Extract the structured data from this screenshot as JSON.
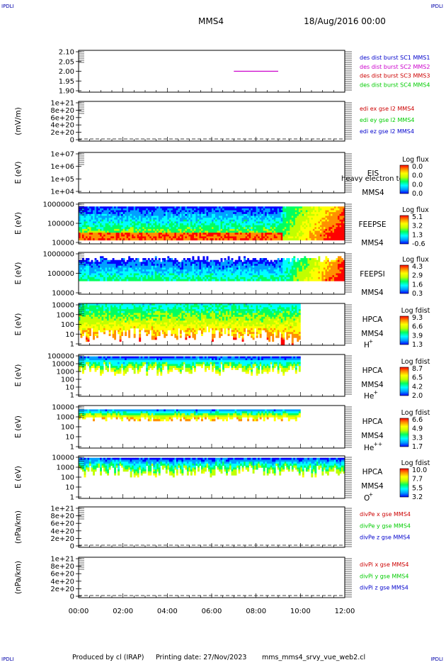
{
  "corner_mark": "IPDLI",
  "header": {
    "spacecraft": "MMS4",
    "date": "18/Aug/2016 00:00"
  },
  "footer": {
    "produced_by": "Produced by cl (IRAP)",
    "printing_date": "Printing date: 27/Nov/2023",
    "script_name": "mms_mms4_srvy_vue_web2.cl"
  },
  "colors": {
    "blue": "#0000cc",
    "magenta": "#cc00cc",
    "red": "#cc0000",
    "green": "#00cc00",
    "spectrogram_scale": [
      "#0000ff",
      "#00a0ff",
      "#00ffff",
      "#00ff60",
      "#c0ff00",
      "#ffff00",
      "#ff9000",
      "#ff0000"
    ]
  },
  "chart_data": {
    "type": "line",
    "x_ticks": [
      "00:00",
      "02:00",
      "04:00",
      "06:00",
      "08:00",
      "10:00",
      "12:00"
    ],
    "xlim": [
      0,
      12
    ],
    "panels": [
      {
        "ylabel": "",
        "yticks": [
          "2.10",
          "2.05",
          "2.00",
          "1.95",
          "1.90"
        ],
        "ylim": [
          1.9,
          2.1
        ],
        "legend": [
          {
            "label": "des dist burst SC1 MMS1",
            "color": "#0000cc"
          },
          {
            "label": "des dist burst SC2 MMS2",
            "color": "#cc00cc"
          },
          {
            "label": "des dist burst SC3 MMS3",
            "color": "#cc0000"
          },
          {
            "label": "des dist burst SC4 MMS4",
            "color": "#00cc00"
          }
        ],
        "series": [
          {
            "color": "#cc00cc",
            "x": [
              7.0,
              9.0
            ],
            "y": [
              2.0,
              2.0
            ]
          }
        ]
      },
      {
        "ylabel": "(mV/m)",
        "yticks": [
          "1e+21",
          "8e+20",
          "6e+20",
          "4e+20",
          "2e+20",
          "0"
        ],
        "legend": [
          {
            "label": "edi ex gse l2 MMS4",
            "color": "#cc0000"
          },
          {
            "label": "edi ey gse l2 MMS4",
            "color": "#00cc00"
          },
          {
            "label": "edi ez gse l2 MMS4",
            "color": "#0000cc"
          }
        ],
        "zero_line": true
      },
      {
        "ylabel": "E (eV)",
        "yticks": [
          "1e+07",
          "1e+06",
          "1e+05",
          "1e+04"
        ],
        "labels": [
          "EIS",
          "MMS4"
        ],
        "overlay": "heavy electron to",
        "colorbar": {
          "title": "Log flux",
          "ticks": [
            "0.0",
            "0.0",
            "0.0",
            "0.0"
          ]
        }
      },
      {
        "ylabel": "E (eV)",
        "yticks": [
          "1000000",
          "100000",
          "10000"
        ],
        "labels": [
          "FEEPSE",
          "MMS4"
        ],
        "colorbar": {
          "title": "Log flux",
          "ticks": [
            "5.1",
            "3.2",
            "1.3",
            "-0.6"
          ]
        }
      },
      {
        "ylabel": "E (eV)",
        "yticks": [
          "1000000",
          "100000",
          "10000"
        ],
        "labels": [
          "FEEPSI",
          "MMS4"
        ],
        "colorbar": {
          "title": "Log flux",
          "ticks": [
            "4.3",
            "2.9",
            "1.6",
            "0.3"
          ]
        }
      },
      {
        "ylabel": "E (eV)",
        "yticks": [
          "10000",
          "1000",
          "100",
          "10",
          "1"
        ],
        "labels": [
          "HPCA",
          "MMS4"
        ],
        "species": "H",
        "species_sup": "+",
        "colorbar": {
          "title": "Log fdist",
          "ticks": [
            "9.3",
            "6.6",
            "3.9",
            "1.3"
          ]
        }
      },
      {
        "ylabel": "E (eV)",
        "yticks": [
          "100000",
          "10000",
          "1000",
          "100",
          "10",
          "1"
        ],
        "labels": [
          "HPCA",
          "MMS4"
        ],
        "species": "He",
        "species_sup": "+",
        "colorbar": {
          "title": "Log fdist",
          "ticks": [
            "8.7",
            "6.5",
            "4.2",
            "2.0"
          ]
        }
      },
      {
        "ylabel": "E (eV)",
        "yticks": [
          "10000",
          "1000",
          "100",
          "10",
          "1"
        ],
        "labels": [
          "HPCA",
          "MMS4"
        ],
        "species": "He",
        "species_sup": "++",
        "colorbar": {
          "title": "Log fdist",
          "ticks": [
            "6.6",
            "4.9",
            "3.3",
            "1.7"
          ]
        }
      },
      {
        "ylabel": "E (eV)",
        "yticks": [
          "10000",
          "1000",
          "100",
          "10",
          "1"
        ],
        "labels": [
          "HPCA",
          "MMS4"
        ],
        "species": "O",
        "species_sup": "+",
        "colorbar": {
          "title": "Log fdist",
          "ticks": [
            "10.0",
            "7.7",
            "5.5",
            "3.2"
          ]
        }
      },
      {
        "ylabel": "(nPa/km)",
        "yticks": [
          "1e+21",
          "8e+20",
          "6e+20",
          "4e+20",
          "2e+20",
          "0"
        ],
        "legend": [
          {
            "label": "divPe x gse MMS4",
            "color": "#cc0000"
          },
          {
            "label": "divPe y gse MMS4",
            "color": "#00cc00"
          },
          {
            "label": "divPe z gse MMS4",
            "color": "#0000cc"
          }
        ],
        "zero_line": true
      },
      {
        "ylabel": "(nPa/km)",
        "yticks": [
          "1e+21",
          "8e+20",
          "6e+20",
          "4e+20",
          "2e+20",
          "0"
        ],
        "legend": [
          {
            "label": "divPi x gse MMS4",
            "color": "#cc0000"
          },
          {
            "label": "divPi y gse MMS4",
            "color": "#00cc00"
          },
          {
            "label": "divPi z gse MMS4",
            "color": "#0000cc"
          }
        ],
        "zero_line": true
      }
    ]
  }
}
